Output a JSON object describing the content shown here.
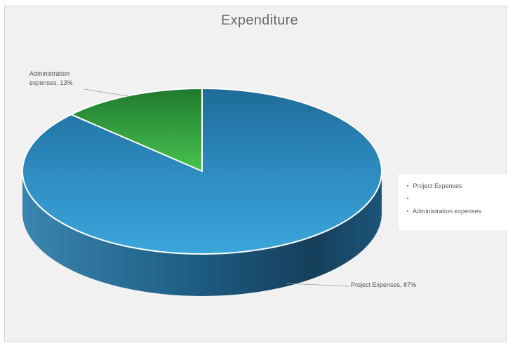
{
  "chart_data": {
    "type": "pie",
    "title": "Expenditure",
    "categories": [
      "Project Expenses",
      "Administration expenses"
    ],
    "values": [
      87,
      13
    ],
    "unit": "%",
    "legend": {
      "placement": "right",
      "entries": [
        "Project Expenses",
        "",
        "Administration expenses"
      ]
    },
    "data_labels": {
      "admin_line1": "Administration",
      "admin_line2": "expenses, 13%",
      "project": "Project Expenses, 87%"
    },
    "colors": {
      "project": "#3a9bd0",
      "administration": "#36b44a"
    },
    "style": "3d"
  }
}
